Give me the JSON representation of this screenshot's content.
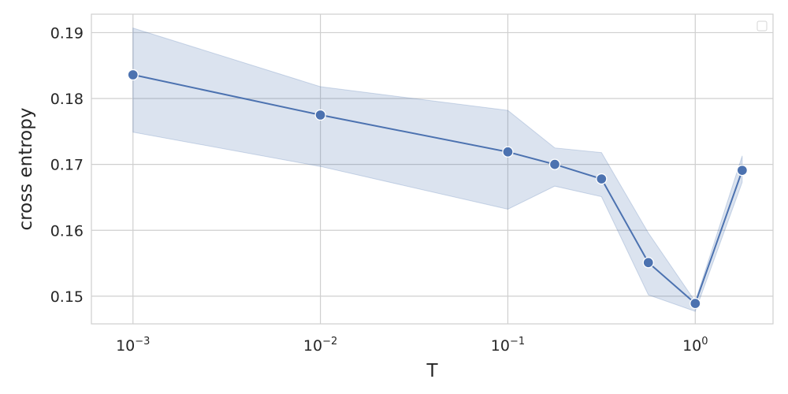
{
  "chart_data": {
    "type": "line",
    "xlabel": "T",
    "ylabel": "cross entropy",
    "xscale": "log",
    "xlim": [
      0.0006,
      2.6
    ],
    "ylim": [
      0.1458,
      0.1928
    ],
    "x_ticks": [
      {
        "value": 0.001,
        "base": "10",
        "exp": "−3"
      },
      {
        "value": 0.01,
        "base": "10",
        "exp": "−2"
      },
      {
        "value": 0.1,
        "base": "10",
        "exp": "−1"
      },
      {
        "value": 1,
        "base": "10",
        "exp": "0"
      }
    ],
    "y_ticks": [
      {
        "value": 0.15,
        "label": "0.15"
      },
      {
        "value": 0.16,
        "label": "0.16"
      },
      {
        "value": 0.17,
        "label": "0.17"
      },
      {
        "value": 0.18,
        "label": "0.18"
      },
      {
        "value": 0.19,
        "label": "0.19"
      }
    ],
    "grid": true,
    "legend": {
      "placement": "top-right",
      "entries": []
    },
    "colors": {
      "line": "#4c72b0",
      "band": "#4c72b0",
      "grid": "#cfcfcf"
    },
    "series": [
      {
        "x": [
          0.001,
          0.01,
          0.1,
          0.178,
          0.316,
          0.562,
          1.0,
          1.78
        ],
        "y": [
          0.1836,
          0.1775,
          0.1719,
          0.17,
          0.1678,
          0.1551,
          0.1489,
          0.1691
        ],
        "ci_low": [
          0.1749,
          0.1697,
          0.1632,
          0.1667,
          0.1651,
          0.1502,
          0.1477,
          0.1673
        ],
        "ci_high": [
          0.1907,
          0.1818,
          0.1782,
          0.1725,
          0.1718,
          0.1596,
          0.1492,
          0.1713
        ]
      }
    ]
  }
}
